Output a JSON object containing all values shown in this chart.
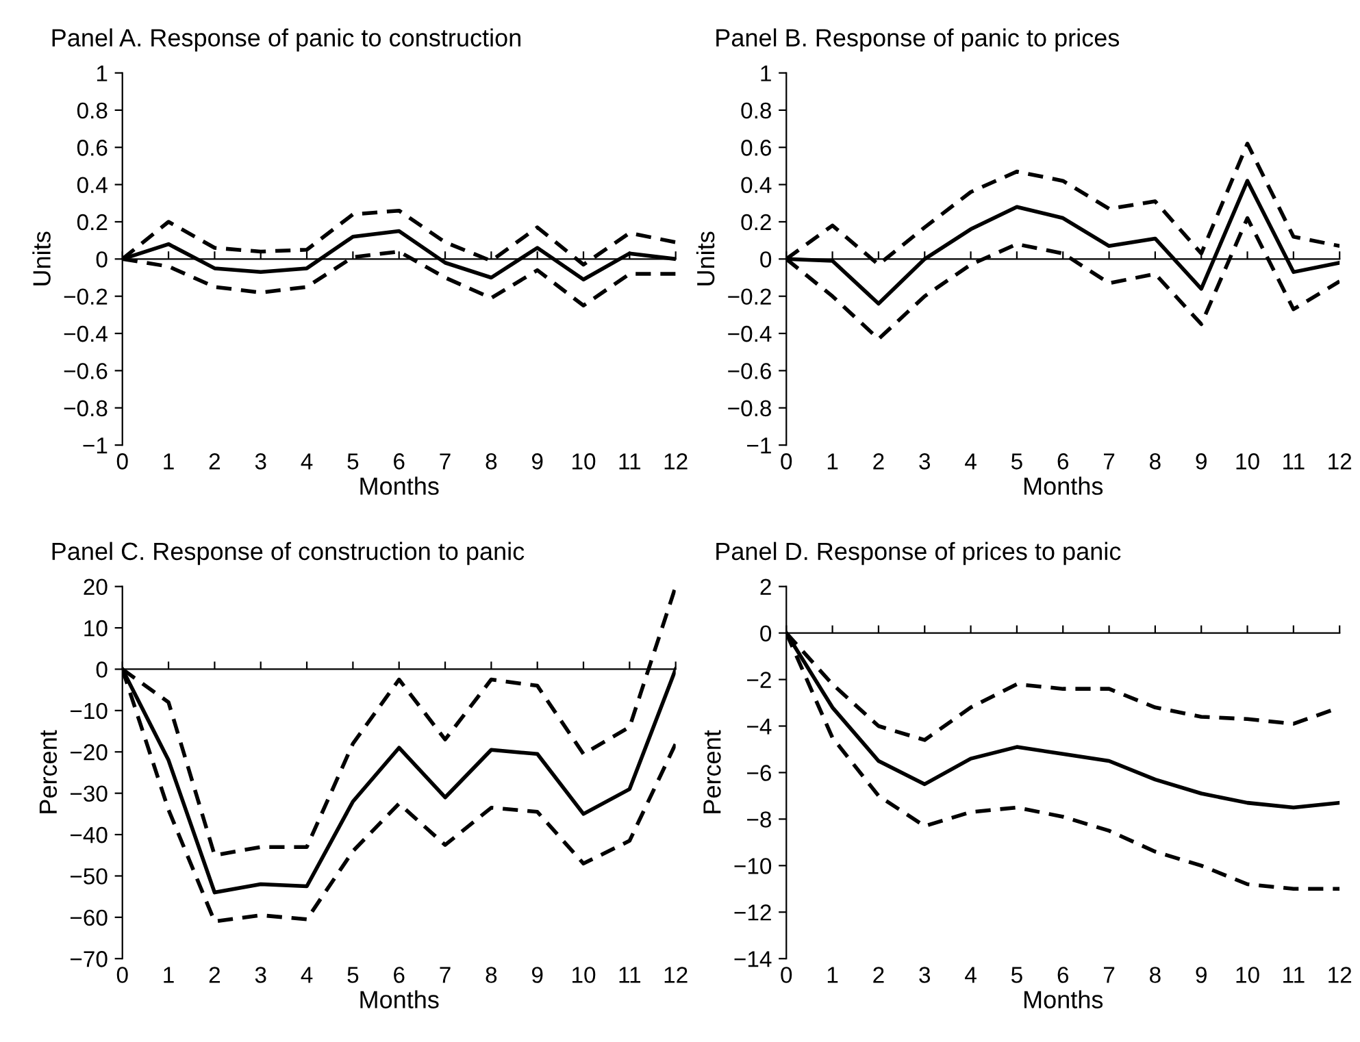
{
  "chart_data": [
    {
      "type": "line",
      "title": "Panel A. Response of panic to construction",
      "xlabel": "Months",
      "ylabel": "Units",
      "x": [
        0,
        1,
        2,
        3,
        4,
        5,
        6,
        7,
        8,
        9,
        10,
        11,
        12
      ],
      "xlim": [
        0,
        12
      ],
      "xticks": [
        0,
        1,
        2,
        3,
        4,
        5,
        6,
        7,
        8,
        9,
        10,
        11,
        12
      ],
      "ylim": [
        -1,
        1
      ],
      "yticks": [
        -1,
        -0.8,
        -0.6,
        -0.4,
        -0.2,
        0,
        0.2,
        0.4,
        0.6,
        0.8,
        1
      ],
      "legend": false,
      "marker": "none",
      "series": [
        {
          "color": "#000000",
          "line_style": "solid",
          "values": [
            0,
            0.08,
            -0.05,
            -0.07,
            -0.05,
            0.12,
            0.15,
            -0.02,
            -0.1,
            0.06,
            -0.11,
            0.03,
            0.0
          ]
        },
        {
          "color": "#000000",
          "line_style": "dashed",
          "values": [
            0,
            0.2,
            0.06,
            0.04,
            0.05,
            0.24,
            0.26,
            0.09,
            -0.01,
            0.17,
            -0.03,
            0.14,
            0.09
          ]
        },
        {
          "color": "#000000",
          "line_style": "dashed",
          "values": [
            0,
            -0.04,
            -0.15,
            -0.18,
            -0.15,
            0.01,
            0.04,
            -0.1,
            -0.21,
            -0.06,
            -0.25,
            -0.08,
            -0.08
          ]
        }
      ]
    },
    {
      "type": "line",
      "title": "Panel B. Response of panic to prices",
      "xlabel": "Months",
      "ylabel": "Units",
      "x": [
        0,
        1,
        2,
        3,
        4,
        5,
        6,
        7,
        8,
        9,
        10,
        11,
        12
      ],
      "xlim": [
        0,
        12
      ],
      "xticks": [
        0,
        1,
        2,
        3,
        4,
        5,
        6,
        7,
        8,
        9,
        10,
        11,
        12
      ],
      "ylim": [
        -1,
        1
      ],
      "yticks": [
        -1,
        -0.8,
        -0.6,
        -0.4,
        -0.2,
        0,
        0.2,
        0.4,
        0.6,
        0.8,
        1
      ],
      "legend": false,
      "marker": "none",
      "series": [
        {
          "color": "#000000",
          "line_style": "solid",
          "values": [
            0,
            -0.01,
            -0.24,
            0.0,
            0.16,
            0.28,
            0.22,
            0.07,
            0.11,
            -0.16,
            0.42,
            -0.07,
            -0.02
          ]
        },
        {
          "color": "#000000",
          "line_style": "dashed",
          "values": [
            0,
            0.18,
            -0.03,
            0.17,
            0.36,
            0.47,
            0.42,
            0.27,
            0.31,
            0.03,
            0.62,
            0.12,
            0.07
          ]
        },
        {
          "color": "#000000",
          "line_style": "dashed",
          "values": [
            0,
            -0.2,
            -0.43,
            -0.2,
            -0.03,
            0.08,
            0.03,
            -0.13,
            -0.08,
            -0.35,
            0.22,
            -0.27,
            -0.12
          ]
        }
      ]
    },
    {
      "type": "line",
      "title": "Panel C. Response of construction to panic",
      "xlabel": "Months",
      "ylabel": "Percent",
      "x": [
        0,
        1,
        2,
        3,
        4,
        5,
        6,
        7,
        8,
        9,
        10,
        11,
        12
      ],
      "xlim": [
        0,
        12
      ],
      "xticks": [
        0,
        1,
        2,
        3,
        4,
        5,
        6,
        7,
        8,
        9,
        10,
        11,
        12
      ],
      "ylim": [
        -70,
        20
      ],
      "yticks": [
        -70,
        -60,
        -50,
        -40,
        -30,
        -20,
        -10,
        0,
        10,
        20
      ],
      "legend": false,
      "marker": "none",
      "series": [
        {
          "color": "#000000",
          "line_style": "solid",
          "values": [
            0,
            -22,
            -54,
            -52,
            -52.5,
            -32,
            -19,
            -31,
            -19.5,
            -20.5,
            -35,
            -29,
            0
          ]
        },
        {
          "color": "#000000",
          "line_style": "dashed",
          "values": [
            0,
            -8,
            -45,
            -43,
            -43,
            -18,
            -2.5,
            -17,
            -2.5,
            -4,
            -20.5,
            -14,
            20
          ]
        },
        {
          "color": "#000000",
          "line_style": "dashed",
          "values": [
            0,
            -34,
            -61,
            -59.5,
            -60.5,
            -44,
            -32.5,
            -42.5,
            -33.5,
            -34.5,
            -47,
            -41.5,
            -18
          ]
        }
      ]
    },
    {
      "type": "line",
      "title": "Panel D. Response of prices to panic",
      "xlabel": "Months",
      "ylabel": "Percent",
      "x": [
        0,
        1,
        2,
        3,
        4,
        5,
        6,
        7,
        8,
        9,
        10,
        11,
        12
      ],
      "xlim": [
        0,
        12
      ],
      "xticks": [
        0,
        1,
        2,
        3,
        4,
        5,
        6,
        7,
        8,
        9,
        10,
        11,
        12
      ],
      "ylim": [
        -14,
        2
      ],
      "yticks": [
        -14,
        -12,
        -10,
        -8,
        -6,
        -4,
        -2,
        0,
        2
      ],
      "legend": false,
      "marker": "none",
      "series": [
        {
          "color": "#000000",
          "line_style": "solid",
          "values": [
            0,
            -3.2,
            -5.5,
            -6.5,
            -5.4,
            -4.9,
            -5.2,
            -5.5,
            -6.3,
            -6.9,
            -7.3,
            -7.5,
            -7.3
          ]
        },
        {
          "color": "#000000",
          "line_style": "dashed",
          "values": [
            0,
            -2.2,
            -4.0,
            -4.6,
            -3.2,
            -2.2,
            -2.4,
            -2.4,
            -3.2,
            -3.6,
            -3.7,
            -3.9,
            -3.2
          ]
        },
        {
          "color": "#000000",
          "line_style": "dashed",
          "values": [
            0,
            -4.5,
            -7.0,
            -8.3,
            -7.7,
            -7.5,
            -7.9,
            -8.5,
            -9.4,
            -10.0,
            -10.8,
            -11.0,
            -11.0
          ]
        }
      ]
    }
  ]
}
